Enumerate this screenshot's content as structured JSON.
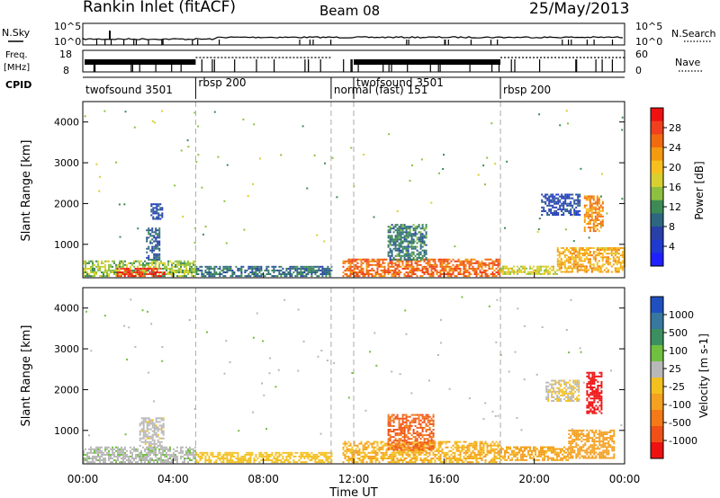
{
  "header": {
    "title": "Rankin Inlet (fitACF)",
    "beam": "Beam 08",
    "date": "25/May/2013"
  },
  "noise_panel": {
    "left_label": "N.Sky",
    "left_ticks": [
      "10^5",
      "10^0"
    ],
    "right_ticks": [
      "10^5",
      "10^0"
    ],
    "right_label": "N.Search"
  },
  "freq_panel": {
    "left_label_1": "Freq.",
    "left_label_2": "[MHz]",
    "left_ticks": [
      "18",
      "8"
    ],
    "right_ticks": [
      "60",
      "0"
    ],
    "right_label": "Nave"
  },
  "cpid_panel": {
    "label": "CPID",
    "modes": [
      {
        "name": "twofsound 3501",
        "start_h": 0.0,
        "end_h": 5.0
      },
      {
        "name": "rbsp 200",
        "start_h": 5.0,
        "end_h": 11.0
      },
      {
        "name": "normal (fast) 151",
        "start_h": 11.0,
        "end_h": 12.0
      },
      {
        "name": "twofsound 3501",
        "start_h": 12.0,
        "end_h": 18.5
      },
      {
        "name": "rbsp 200",
        "start_h": 18.5,
        "end_h": 24.0
      }
    ]
  },
  "x_axis": {
    "label": "Time UT",
    "ticks": [
      "00:00",
      "04:00",
      "08:00",
      "12:00",
      "16:00",
      "20:00",
      "00:00"
    ]
  },
  "colorbars": {
    "power": {
      "label": "Power [dB]",
      "ticks": [
        "28",
        "24",
        "20",
        "16",
        "12",
        "8",
        "4"
      ],
      "colors": [
        "#ee1111",
        "#f04020",
        "#f06a10",
        "#f39a10",
        "#f7c020",
        "#d8d030",
        "#8ec040",
        "#3c8a55",
        "#2e6880",
        "#2840a8",
        "#1f3ad0",
        "#1f1fff"
      ]
    },
    "velocity": {
      "label": "Velocity [m s-1]",
      "ticks": [
        "1000",
        "500",
        "100",
        "25",
        "-25",
        "-100",
        "-500",
        "-1000"
      ],
      "colors": [
        "#2050c0",
        "#3878a0",
        "#3c9060",
        "#70c040",
        "#b8b8b8",
        "#f4c020",
        "#f4a020",
        "#f47a18",
        "#f05018",
        "#ee1111"
      ]
    }
  },
  "chart_data": [
    {
      "type": "heatmap",
      "title": "Power",
      "ylabel": "Slant Range [km]",
      "xlabel": "",
      "x_range_h": [
        0,
        24
      ],
      "ylim": [
        180,
        4500
      ],
      "yticks": [
        1000,
        2000,
        3000,
        4000
      ],
      "colorbar_label": "Power [dB]",
      "colorbar_range": [
        0,
        30
      ],
      "regions": [
        {
          "t0": 0.0,
          "t1": 5.0,
          "r0": 200,
          "r1": 600,
          "level": 14
        },
        {
          "t0": 1.5,
          "t1": 3.6,
          "r0": 200,
          "r1": 420,
          "level": 27
        },
        {
          "t0": 2.8,
          "t1": 3.4,
          "r0": 600,
          "r1": 1400,
          "level": 8
        },
        {
          "t0": 3.0,
          "t1": 3.5,
          "r0": 1600,
          "r1": 2000,
          "level": 6
        },
        {
          "t0": 5.0,
          "t1": 11.0,
          "r0": 200,
          "r1": 450,
          "level": 9
        },
        {
          "t0": 11.5,
          "t1": 18.5,
          "r0": 200,
          "r1": 650,
          "level": 24
        },
        {
          "t0": 13.5,
          "t1": 15.2,
          "r0": 600,
          "r1": 1500,
          "level": 10
        },
        {
          "t0": 18.5,
          "t1": 21.0,
          "r0": 250,
          "r1": 450,
          "level": 16
        },
        {
          "t0": 21.0,
          "t1": 24.0,
          "r0": 300,
          "r1": 900,
          "level": 20
        },
        {
          "t0": 20.3,
          "t1": 22.0,
          "r0": 1700,
          "r1": 2200,
          "level": 6
        },
        {
          "t0": 22.2,
          "t1": 23.0,
          "r0": 1300,
          "r1": 2200,
          "level": 22
        }
      ]
    },
    {
      "type": "heatmap",
      "title": "Velocity",
      "ylabel": "Slant Range [km]",
      "xlabel": "Time UT",
      "x_range_h": [
        0,
        24
      ],
      "ylim": [
        180,
        4500
      ],
      "yticks": [
        1000,
        2000,
        3000,
        4000
      ],
      "colorbar_label": "Velocity [m s-1]",
      "colorbar_range": [
        -1000,
        1000
      ],
      "regions": [
        {
          "t0": 0.0,
          "t1": 5.0,
          "r0": 200,
          "r1": 600,
          "level": 150
        },
        {
          "t0": 2.5,
          "t1": 3.6,
          "r0": 600,
          "r1": 1300,
          "level": 60
        },
        {
          "t0": 5.0,
          "t1": 11.0,
          "r0": 200,
          "r1": 450,
          "level": -120
        },
        {
          "t0": 11.5,
          "t1": 18.5,
          "r0": 200,
          "r1": 700,
          "level": -200
        },
        {
          "t0": 13.5,
          "t1": 15.5,
          "r0": 500,
          "r1": 1400,
          "level": -600
        },
        {
          "t0": 18.5,
          "t1": 21.5,
          "r0": 250,
          "r1": 600,
          "level": -250
        },
        {
          "t0": 21.5,
          "t1": 23.5,
          "r0": 300,
          "r1": 1000,
          "level": -300
        },
        {
          "t0": 20.5,
          "t1": 22.0,
          "r0": 1700,
          "r1": 2200,
          "level": 0
        },
        {
          "t0": 22.3,
          "t1": 23.0,
          "r0": 1400,
          "r1": 2400,
          "level": -900
        }
      ]
    }
  ]
}
